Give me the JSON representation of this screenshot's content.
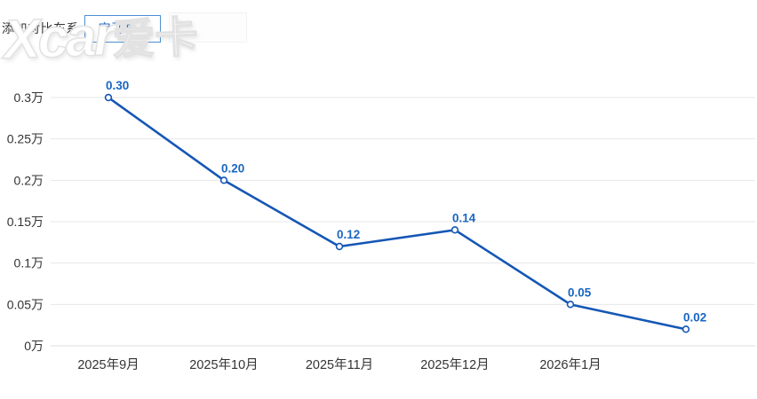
{
  "header": {
    "add_compare_label": "添加对比车系",
    "series_select": {
      "value": "宝马i5",
      "chevron_icon": "⌄"
    }
  },
  "watermark": {
    "brand": "Xcar",
    "brand_cjk": "爱卡"
  },
  "chart_data": {
    "type": "line",
    "title": "",
    "xlabel": "",
    "ylabel": "",
    "unit": "万",
    "categories": [
      "2025年9月",
      "2025年10月",
      "2025年11月",
      "2025年12月",
      "2026年1月",
      ""
    ],
    "values": [
      0.3,
      0.2,
      0.12,
      0.14,
      0.05,
      0.02
    ],
    "point_labels": [
      "0.30",
      "0.20",
      "0.12",
      "0.14",
      "0.05",
      "0.02"
    ],
    "ylim": [
      0,
      0.3
    ],
    "ytick_values": [
      0,
      0.05,
      0.1,
      0.15,
      0.2,
      0.25,
      0.3
    ],
    "ytick_labels": [
      "0万",
      "0.05万",
      "0.1万",
      "0.15万",
      "0.2万",
      "0.25万",
      "0.3万"
    ],
    "grid": true,
    "legend_position": "none",
    "line_color": "#1557b5",
    "marker_fill": "#ffffff",
    "point_label_color": "#1a66c2",
    "grid_color": "#e7e7e7",
    "baseline_color": "#dcdcdc",
    "axis_text_color": "#333333"
  }
}
